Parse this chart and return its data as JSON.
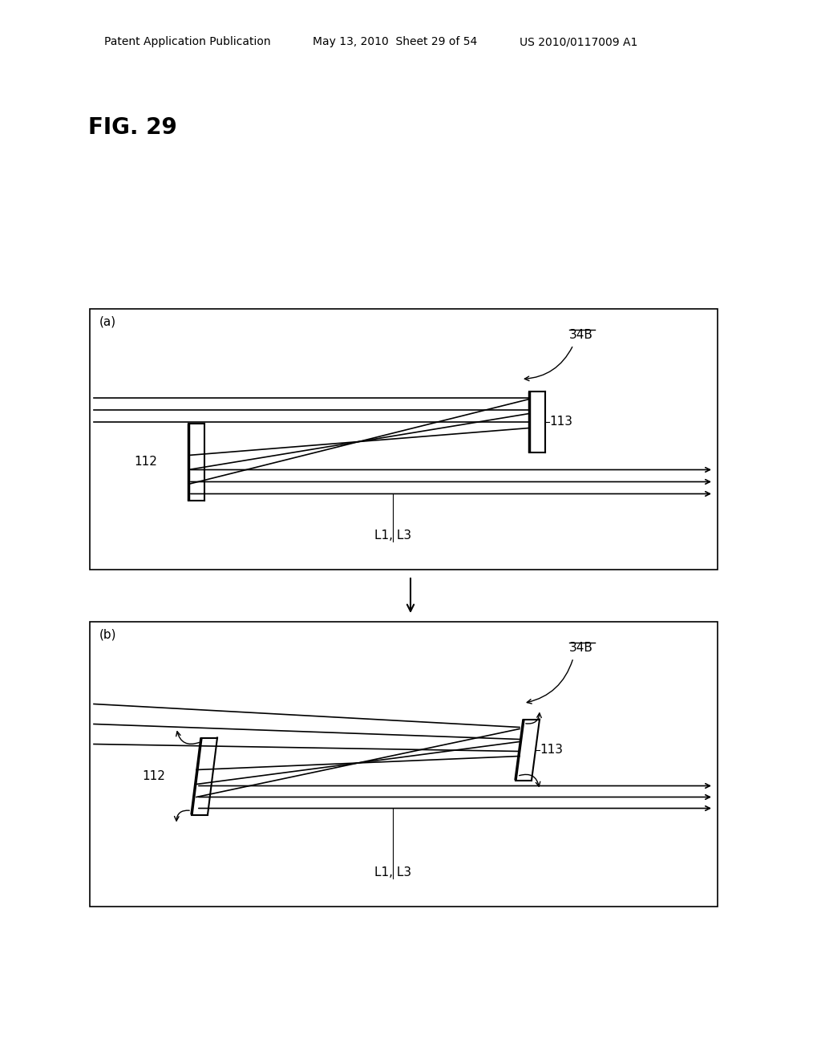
{
  "bg_color": "#ffffff",
  "text_color": "#000000",
  "header_text_left": "Patent Application Publication",
  "header_text_mid": "May 13, 2010  Sheet 29 of 54",
  "header_text_right": "US 2010/0117009 A1",
  "fig_label": "FIG. 29",
  "panel_a_label": "(a)",
  "panel_b_label": "(b)",
  "label_34B": "34B",
  "label_112_a": "112",
  "label_113_a": "113",
  "label_L1L3_a": "L1, L3",
  "label_112_b": "112",
  "label_113_b": "113",
  "label_L1L3_b": "L1, L3"
}
